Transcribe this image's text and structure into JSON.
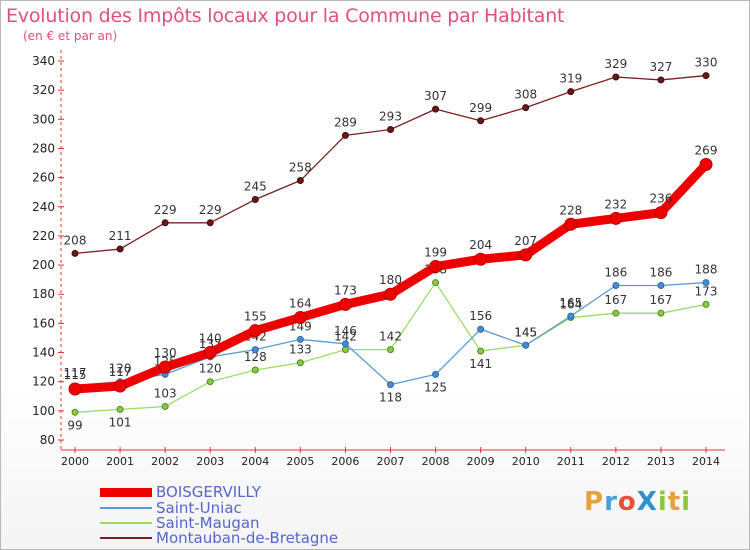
{
  "header": {
    "title": "Evolution des Impôts locaux pour la Commune par Habitant",
    "subtitle": "(en € et par an)"
  },
  "logo": {
    "text": "ProXiti",
    "letters": [
      "P",
      "r",
      "o",
      "X",
      "i",
      "t",
      "i"
    ],
    "colors": [
      "#e8a03a",
      "#4aa0d8",
      "#e8503a",
      "#2f8fd0",
      "#8cc63f",
      "#e8a03a",
      "#8cc63f"
    ]
  },
  "chart_data": {
    "type": "line",
    "title": "Evolution des Impôts locaux pour la Commune par Habitant",
    "subtitle": "(en € et par an)",
    "x": [
      2000,
      2001,
      2002,
      2003,
      2004,
      2005,
      2006,
      2007,
      2008,
      2009,
      2010,
      2011,
      2012,
      2013,
      2014
    ],
    "ylim": [
      80,
      340
    ],
    "yticks": [
      80,
      100,
      120,
      140,
      160,
      180,
      200,
      220,
      240,
      260,
      280,
      300,
      320,
      340
    ],
    "grid": false,
    "legend": "bottom-left",
    "series": [
      {
        "name": "BOISGERVILLY",
        "color": "#ee0000",
        "values": [
          115,
          117,
          130,
          140,
          155,
          164,
          173,
          180,
          199,
          204,
          207,
          228,
          232,
          236,
          269
        ]
      },
      {
        "name": "Saint-Uniac",
        "color": "#5b9bd5",
        "values": [
          117,
          120,
          125,
          137,
          142,
          149,
          146,
          118,
          125,
          156,
          145,
          165,
          186,
          186,
          188
        ]
      },
      {
        "name": "Saint-Maugan",
        "color": "#99dd66",
        "values": [
          99,
          101,
          103,
          120,
          128,
          133,
          142,
          142,
          188,
          141,
          145,
          164,
          167,
          167,
          173
        ]
      },
      {
        "name": "Montauban-de-Bretagne",
        "color": "#7a2020",
        "values": [
          208,
          211,
          229,
          229,
          245,
          258,
          289,
          293,
          307,
          299,
          308,
          319,
          329,
          327,
          330
        ]
      }
    ]
  }
}
